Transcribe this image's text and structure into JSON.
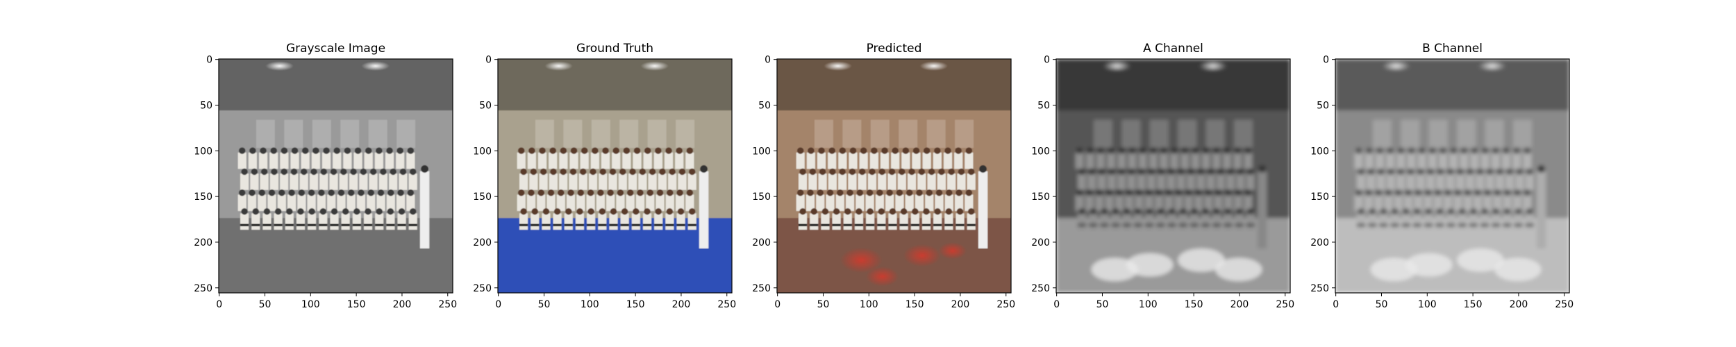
{
  "chart_data": [
    {
      "type": "image",
      "title": "Grayscale Image",
      "xlim": [
        0,
        255
      ],
      "ylim": [
        255,
        0
      ],
      "xticks": [
        0,
        50,
        100,
        150,
        200,
        250
      ],
      "yticks": [
        0,
        50,
        100,
        150,
        200,
        250
      ],
      "colormap": "grayscale",
      "floor_color": "#6f6f6f",
      "wall_color": "#9a9a9a"
    },
    {
      "type": "image",
      "title": "Ground Truth",
      "xlim": [
        0,
        255
      ],
      "ylim": [
        255,
        0
      ],
      "xticks": [
        0,
        50,
        100,
        150,
        200,
        250
      ],
      "yticks": [
        0,
        50,
        100,
        150,
        200,
        250
      ],
      "colormap": "rgb",
      "floor_color": "#2f4fb7",
      "wall_color": "#a9a18e"
    },
    {
      "type": "image",
      "title": "Predicted",
      "xlim": [
        0,
        255
      ],
      "ylim": [
        255,
        0
      ],
      "xticks": [
        0,
        50,
        100,
        150,
        200,
        250
      ],
      "yticks": [
        0,
        50,
        100,
        150,
        200,
        250
      ],
      "colormap": "rgb",
      "floor_color": "#7d5446",
      "wall_color": "#a4846a"
    },
    {
      "type": "image",
      "title": "A Channel",
      "xlim": [
        0,
        255
      ],
      "ylim": [
        255,
        0
      ],
      "xticks": [
        0,
        50,
        100,
        150,
        200,
        250
      ],
      "yticks": [
        0,
        50,
        100,
        150,
        200,
        250
      ],
      "colormap": "grayscale",
      "floor_color": "#9a9a9a",
      "wall_color": "#555555"
    },
    {
      "type": "image",
      "title": "B Channel",
      "xlim": [
        0,
        255
      ],
      "ylim": [
        255,
        0
      ],
      "xticks": [
        0,
        50,
        100,
        150,
        200,
        250
      ],
      "yticks": [
        0,
        50,
        100,
        150,
        200,
        250
      ],
      "colormap": "grayscale",
      "floor_color": "#bdbdbd",
      "wall_color": "#8a8a8a"
    }
  ]
}
